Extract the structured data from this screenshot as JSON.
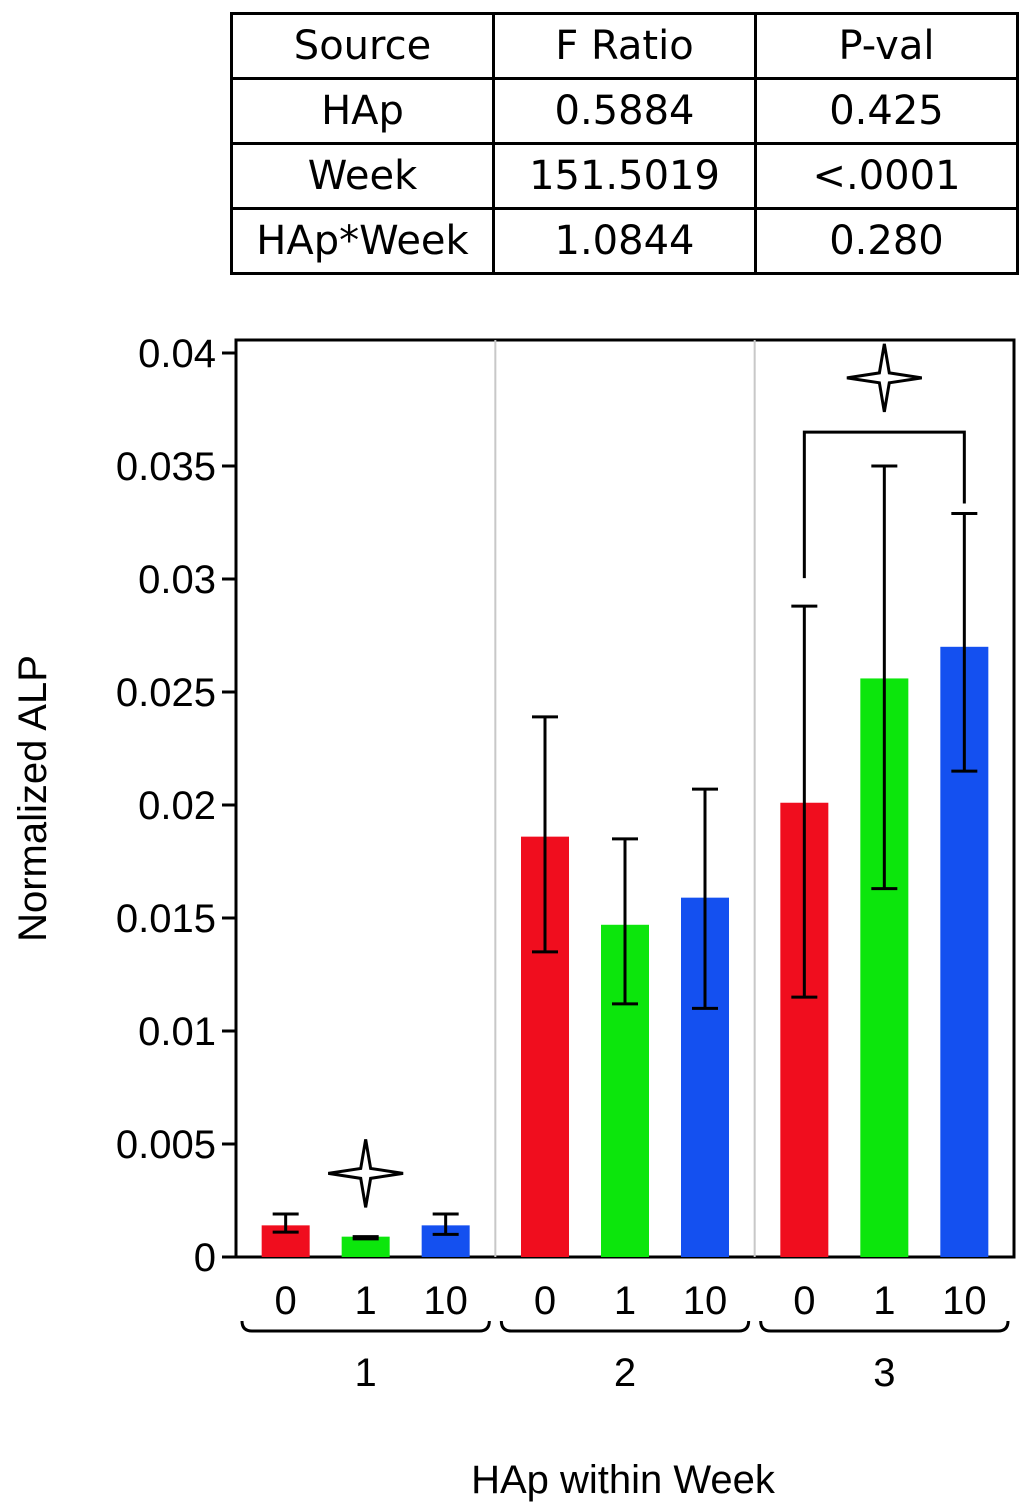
{
  "table": {
    "headers": [
      "Source",
      "F Ratio",
      "P-val"
    ],
    "rows": [
      [
        "HAp",
        "0.5884",
        "0.425"
      ],
      [
        "Week",
        "151.5019",
        "<.0001"
      ],
      [
        "HAp*Week",
        "1.0844",
        "0.280"
      ]
    ]
  },
  "chart_data": {
    "type": "bar",
    "title": "",
    "xlabel": "HAp within Week",
    "ylabel": "Normalized ALP",
    "ylim": [
      0,
      0.04
    ],
    "yticks": [
      "0",
      "0.005",
      "0.01",
      "0.015",
      "0.02",
      "0.025",
      "0.03",
      "0.035",
      "0.04"
    ],
    "ytick_values": [
      0,
      0.005,
      0.01,
      0.015,
      0.02,
      0.025,
      0.03,
      0.035,
      0.04
    ],
    "groups": [
      {
        "label": "1",
        "bars": [
          {
            "label": "0",
            "value": 0.0014,
            "err_low": 0.0011,
            "err_high": 0.0019
          },
          {
            "label": "1",
            "value": 0.0009,
            "err_low": 0.0008,
            "err_high": 0.0009
          },
          {
            "label": "10",
            "value": 0.0014,
            "err_low": 0.001,
            "err_high": 0.0019
          }
        ]
      },
      {
        "label": "2",
        "bars": [
          {
            "label": "0",
            "value": 0.0186,
            "err_low": 0.0135,
            "err_high": 0.0239
          },
          {
            "label": "1",
            "value": 0.0147,
            "err_low": 0.0112,
            "err_high": 0.0185
          },
          {
            "label": "10",
            "value": 0.0159,
            "err_low": 0.011,
            "err_high": 0.0207
          }
        ]
      },
      {
        "label": "3",
        "bars": [
          {
            "label": "0",
            "value": 0.0201,
            "err_low": 0.0115,
            "err_high": 0.0288
          },
          {
            "label": "1",
            "value": 0.0256,
            "err_low": 0.0163,
            "err_high": 0.035
          },
          {
            "label": "10",
            "value": 0.027,
            "err_low": 0.0215,
            "err_high": 0.0329
          }
        ]
      }
    ],
    "bar_colors": [
      "#f00d1e",
      "#0ce60c",
      "#1450f0"
    ],
    "annotations": [
      {
        "type": "star",
        "group": 0,
        "bar": 1,
        "value": 0.0037
      },
      {
        "type": "bracket",
        "group": 2,
        "from_bar": 0,
        "to_bar": 2,
        "value": 0.0365
      },
      {
        "type": "star",
        "group": 2,
        "between": [
          0,
          2
        ],
        "value": 0.0389
      }
    ]
  }
}
